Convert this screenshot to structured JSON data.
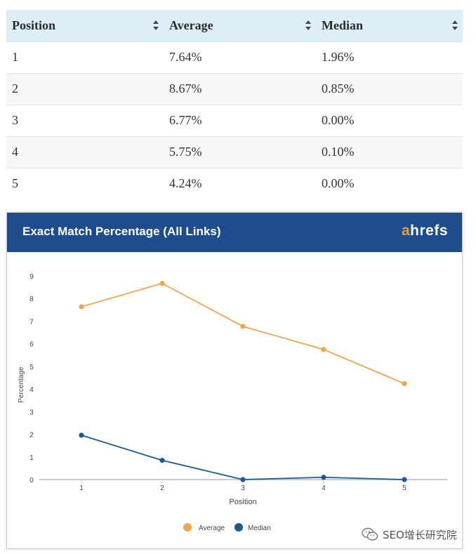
{
  "table": {
    "headers": [
      "Position",
      "Average",
      "Median"
    ],
    "rows": [
      [
        "1",
        "7.64%",
        "1.96%"
      ],
      [
        "2",
        "8.67%",
        "0.85%"
      ],
      [
        "3",
        "6.77%",
        "0.00%"
      ],
      [
        "4",
        "5.75%",
        "0.10%"
      ],
      [
        "5",
        "4.24%",
        "0.00%"
      ]
    ]
  },
  "brand": {
    "accent": "a",
    "rest": "hrefs"
  },
  "watermark": {
    "text": "SEO增长研究院",
    "icon": "wechat-icon"
  },
  "colors": {
    "header_bg": "#1e4c8c",
    "average": "#f2a54a",
    "median": "#1c5a96",
    "table_header_bg": "#deeef8"
  },
  "chart_data": {
    "type": "line",
    "title": "Exact Match Percentage (All Links)",
    "xlabel": "Position",
    "ylabel": "Percentage",
    "x": [
      1,
      2,
      3,
      4,
      5
    ],
    "x_tick_labels": [
      "1",
      "2",
      "3",
      "4",
      "5"
    ],
    "y_tick_labels": [
      "0",
      "1",
      "2",
      "3",
      "4",
      "5",
      "6",
      "7",
      "8",
      "9"
    ],
    "ylim": [
      0,
      9
    ],
    "grid": false,
    "legend_position": "bottom-center",
    "series": [
      {
        "name": "Average",
        "color": "#f2a54a",
        "values": [
          7.64,
          8.67,
          6.77,
          5.75,
          4.24
        ]
      },
      {
        "name": "Median",
        "color": "#1c5a96",
        "values": [
          1.96,
          0.85,
          0.0,
          0.1,
          0.0
        ]
      }
    ]
  }
}
